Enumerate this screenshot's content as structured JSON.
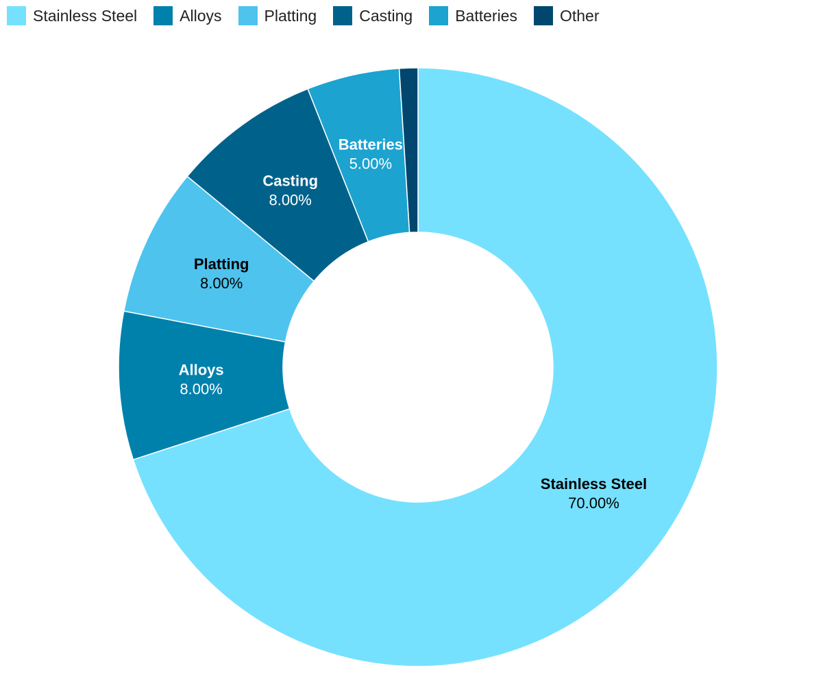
{
  "chart_data": {
    "type": "donut",
    "categories": [
      "Stainless Steel",
      "Alloys",
      "Platting",
      "Casting",
      "Batteries",
      "Other"
    ],
    "values": [
      70,
      8,
      8,
      8,
      5,
      1
    ],
    "value_labels": [
      "70.00%",
      "8.00%",
      "8.00%",
      "8.00%",
      "5.00%",
      null
    ],
    "colors": [
      "#75e1fe",
      "#0081ac",
      "#4ec3ee",
      "#00628b",
      "#1ca3d0",
      "#00466e"
    ],
    "legend": "top-left"
  }
}
